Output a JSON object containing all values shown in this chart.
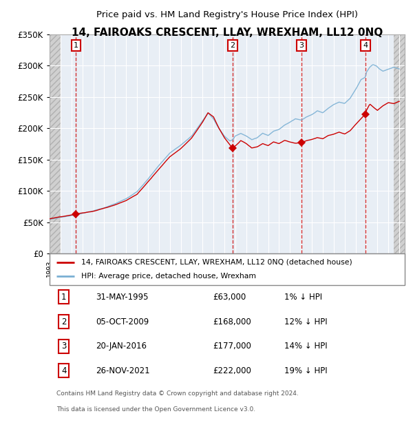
{
  "title": "14, FAIROAKS CRESCENT, LLAY, WREXHAM, LL12 0NQ",
  "subtitle": "Price paid vs. HM Land Registry's House Price Index (HPI)",
  "legend_line1": "14, FAIROAKS CRESCENT, LLAY, WREXHAM, LL12 0NQ (detached house)",
  "legend_line2": "HPI: Average price, detached house, Wrexham",
  "footer1": "Contains HM Land Registry data © Crown copyright and database right 2024.",
  "footer2": "This data is licensed under the Open Government Licence v3.0.",
  "sales": [
    {
      "num": 1,
      "date": "31-MAY-1995",
      "price": "£63,000",
      "pct": "1% ↓ HPI"
    },
    {
      "num": 2,
      "date": "05-OCT-2009",
      "price": "£168,000",
      "pct": "12% ↓ HPI"
    },
    {
      "num": 3,
      "date": "20-JAN-2016",
      "price": "£177,000",
      "pct": "14% ↓ HPI"
    },
    {
      "num": 4,
      "date": "26-NOV-2021",
      "price": "£222,000",
      "pct": "19% ↓ HPI"
    }
  ],
  "sale_xvals": [
    1995.41,
    2009.76,
    2016.05,
    2021.9
  ],
  "sale_yvals": [
    63000,
    168000,
    177000,
    222000
  ],
  "hpi_color": "#7ab0d4",
  "price_color": "#cc0000",
  "sale_marker_color": "#cc0000",
  "ylim": [
    0,
    350000
  ],
  "yticks": [
    0,
    50000,
    100000,
    150000,
    200000,
    250000,
    300000,
    350000
  ],
  "background_main": "#e8eef5",
  "grid_color": "#ffffff",
  "hatch_color": "#c8c8c8"
}
